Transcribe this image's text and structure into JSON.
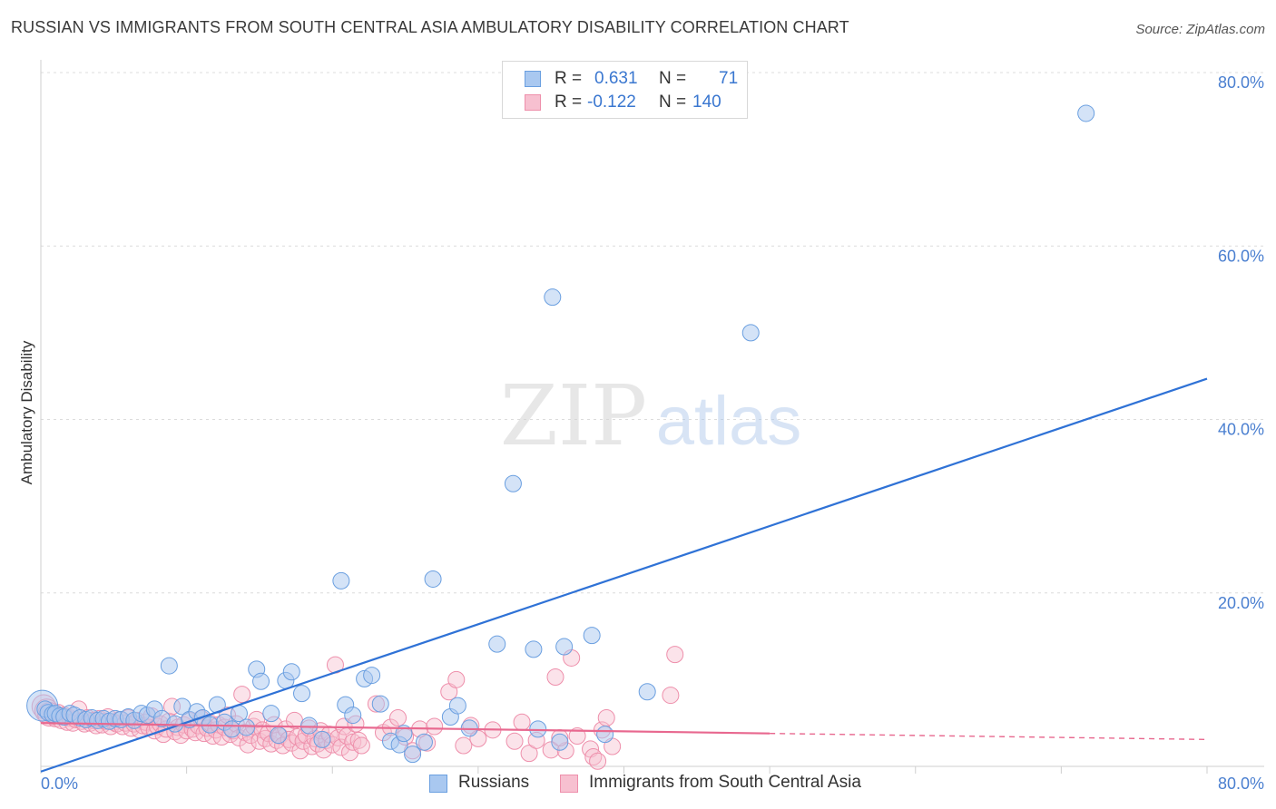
{
  "title": "RUSSIAN VS IMMIGRANTS FROM SOUTH CENTRAL ASIA AMBULATORY DISABILITY CORRELATION CHART",
  "source": "Source: ZipAtlas.com",
  "watermark": {
    "zip": "ZIP",
    "atlas": "atlas"
  },
  "colors": {
    "blue_fill": "#a9c8f0",
    "blue_stroke": "#6a9fe0",
    "blue_line": "#2f72d6",
    "pink_fill": "#f7c0d0",
    "pink_stroke": "#ee8fab",
    "pink_line": "#e8688f",
    "tick": "#4a7fd0",
    "grid": "#dcdcdc"
  },
  "legend": {
    "russians": {
      "r_label": "R =",
      "r_value": "0.631",
      "n_label": "N =",
      "n_value": "71"
    },
    "immigrants": {
      "r_label": "R =",
      "r_value": "-0.122",
      "n_label": "N =",
      "n_value": "140"
    }
  },
  "bottom_legend": {
    "russians": "Russians",
    "immigrants": "Immigrants from South Central Asia"
  },
  "chart_data": {
    "type": "scatter",
    "title": "RUSSIAN VS IMMIGRANTS FROM SOUTH CENTRAL ASIA AMBULATORY DISABILITY CORRELATION CHART",
    "xlabel": "",
    "ylabel": "Ambulatory Disability",
    "xlim": [
      0,
      80
    ],
    "ylim": [
      0,
      80
    ],
    "x_tick_labels": [
      {
        "value": 0,
        "label": "0.0%"
      },
      {
        "value": 80,
        "label": "80.0%"
      }
    ],
    "y_tick_labels": [
      {
        "value": 20,
        "label": "20.0%"
      },
      {
        "value": 40,
        "label": "40.0%"
      },
      {
        "value": 60,
        "label": "60.0%"
      },
      {
        "value": 80,
        "label": "80.0%"
      }
    ],
    "grid": true,
    "series": [
      {
        "name": "Russians",
        "color": "blue",
        "trend": {
          "x0": 0,
          "y0": -0.6,
          "x1": 80,
          "y1": 44.7
        },
        "points": [
          [
            0.1,
            7.0
          ],
          [
            0.3,
            6.6
          ],
          [
            0.5,
            6.2
          ],
          [
            0.8,
            6.0
          ],
          [
            1.0,
            6.1
          ],
          [
            1.3,
            5.8
          ],
          [
            1.6,
            5.7
          ],
          [
            2.0,
            6.1
          ],
          [
            2.3,
            5.9
          ],
          [
            2.7,
            5.6
          ],
          [
            3.1,
            5.4
          ],
          [
            3.5,
            5.6
          ],
          [
            3.9,
            5.3
          ],
          [
            4.3,
            5.5
          ],
          [
            4.7,
            5.2
          ],
          [
            5.1,
            5.5
          ],
          [
            5.5,
            5.4
          ],
          [
            6.0,
            5.7
          ],
          [
            6.4,
            5.3
          ],
          [
            6.9,
            6.1
          ],
          [
            7.3,
            5.9
          ],
          [
            7.8,
            6.6
          ],
          [
            8.3,
            5.5
          ],
          [
            8.8,
            11.6
          ],
          [
            9.2,
            4.9
          ],
          [
            9.7,
            6.9
          ],
          [
            10.2,
            5.4
          ],
          [
            10.7,
            6.3
          ],
          [
            11.1,
            5.6
          ],
          [
            11.6,
            4.8
          ],
          [
            12.1,
            7.1
          ],
          [
            12.6,
            5.1
          ],
          [
            13.1,
            4.3
          ],
          [
            13.6,
            6.1
          ],
          [
            14.1,
            4.5
          ],
          [
            14.8,
            11.2
          ],
          [
            15.1,
            9.8
          ],
          [
            15.8,
            6.1
          ],
          [
            16.3,
            3.6
          ],
          [
            16.8,
            9.9
          ],
          [
            17.2,
            10.9
          ],
          [
            17.9,
            8.4
          ],
          [
            18.4,
            4.7
          ],
          [
            19.3,
            3.1
          ],
          [
            20.6,
            21.4
          ],
          [
            20.9,
            7.1
          ],
          [
            21.4,
            5.9
          ],
          [
            22.2,
            10.1
          ],
          [
            22.7,
            10.5
          ],
          [
            23.3,
            7.2
          ],
          [
            24.0,
            2.9
          ],
          [
            24.6,
            2.5
          ],
          [
            24.9,
            3.8
          ],
          [
            25.5,
            1.4
          ],
          [
            26.3,
            2.8
          ],
          [
            26.9,
            21.6
          ],
          [
            28.1,
            5.7
          ],
          [
            28.6,
            7.0
          ],
          [
            29.4,
            4.4
          ],
          [
            31.3,
            14.1
          ],
          [
            32.4,
            32.6
          ],
          [
            33.8,
            13.5
          ],
          [
            35.1,
            54.1
          ],
          [
            35.9,
            13.8
          ],
          [
            37.8,
            15.1
          ],
          [
            38.7,
            3.7
          ],
          [
            41.6,
            8.6
          ],
          [
            48.7,
            50.0
          ],
          [
            35.6,
            2.8
          ],
          [
            34.1,
            4.3
          ],
          [
            71.7,
            75.3
          ]
        ]
      },
      {
        "name": "Immigrants from South Central Asia",
        "color": "pink",
        "trend": {
          "x0": 0,
          "y0": 5.0,
          "x1": 50,
          "y1": 3.8,
          "dash_x1": 80,
          "dash_y1": 3.1
        },
        "points": [
          [
            0.2,
            6.9
          ],
          [
            0.4,
            6.4
          ],
          [
            0.6,
            6.0
          ],
          [
            0.8,
            5.8
          ],
          [
            1.0,
            5.5
          ],
          [
            1.2,
            6.2
          ],
          [
            1.4,
            5.3
          ],
          [
            1.6,
            5.9
          ],
          [
            1.8,
            5.1
          ],
          [
            2.0,
            5.6
          ],
          [
            2.2,
            5.0
          ],
          [
            2.4,
            5.4
          ],
          [
            2.6,
            6.6
          ],
          [
            2.8,
            5.2
          ],
          [
            3.0,
            4.9
          ],
          [
            3.2,
            5.6
          ],
          [
            3.4,
            5.0
          ],
          [
            3.6,
            5.3
          ],
          [
            3.8,
            4.7
          ],
          [
            4.0,
            5.5
          ],
          [
            4.2,
            4.8
          ],
          [
            4.4,
            5.2
          ],
          [
            4.6,
            5.7
          ],
          [
            4.8,
            4.6
          ],
          [
            5.0,
            5.1
          ],
          [
            5.2,
            4.9
          ],
          [
            5.4,
            5.4
          ],
          [
            5.6,
            4.6
          ],
          [
            5.8,
            5.0
          ],
          [
            6.0,
            5.6
          ],
          [
            6.2,
            4.4
          ],
          [
            6.4,
            4.9
          ],
          [
            6.6,
            5.3
          ],
          [
            6.8,
            4.2
          ],
          [
            7.0,
            4.7
          ],
          [
            7.2,
            5.1
          ],
          [
            7.4,
            4.5
          ],
          [
            7.6,
            5.8
          ],
          [
            7.8,
            4.1
          ],
          [
            8.0,
            4.6
          ],
          [
            8.2,
            4.9
          ],
          [
            8.4,
            3.7
          ],
          [
            8.6,
            4.3
          ],
          [
            8.8,
            5.2
          ],
          [
            9.0,
            6.9
          ],
          [
            9.2,
            4.0
          ],
          [
            9.4,
            4.5
          ],
          [
            9.6,
            3.6
          ],
          [
            9.8,
            4.8
          ],
          [
            10.0,
            4.1
          ],
          [
            10.2,
            5.3
          ],
          [
            10.4,
            4.3
          ],
          [
            10.6,
            3.9
          ],
          [
            10.8,
            4.7
          ],
          [
            11.0,
            5.5
          ],
          [
            11.2,
            3.8
          ],
          [
            11.4,
            4.4
          ],
          [
            11.6,
            5.0
          ],
          [
            11.8,
            3.5
          ],
          [
            12.0,
            4.2
          ],
          [
            12.2,
            4.8
          ],
          [
            12.4,
            3.4
          ],
          [
            12.6,
            4.5
          ],
          [
            12.8,
            5.9
          ],
          [
            13.0,
            3.7
          ],
          [
            13.2,
            4.1
          ],
          [
            13.4,
            4.9
          ],
          [
            13.6,
            3.3
          ],
          [
            13.8,
            8.3
          ],
          [
            14.0,
            3.9
          ],
          [
            14.2,
            2.5
          ],
          [
            14.4,
            3.6
          ],
          [
            14.6,
            4.6
          ],
          [
            14.8,
            5.4
          ],
          [
            15.0,
            2.9
          ],
          [
            15.2,
            4.2
          ],
          [
            15.4,
            3.2
          ],
          [
            15.6,
            3.8
          ],
          [
            15.8,
            2.6
          ],
          [
            16.0,
            4.8
          ],
          [
            16.2,
            3.0
          ],
          [
            16.4,
            3.5
          ],
          [
            16.6,
            2.4
          ],
          [
            16.8,
            4.3
          ],
          [
            17.0,
            3.1
          ],
          [
            17.2,
            2.7
          ],
          [
            17.4,
            5.3
          ],
          [
            17.6,
            3.4
          ],
          [
            17.8,
            1.8
          ],
          [
            18.0,
            2.9
          ],
          [
            18.2,
            3.6
          ],
          [
            18.4,
            4.4
          ],
          [
            18.6,
            2.3
          ],
          [
            18.8,
            3.2
          ],
          [
            19.0,
            2.6
          ],
          [
            19.2,
            4.1
          ],
          [
            19.4,
            1.9
          ],
          [
            19.6,
            3.0
          ],
          [
            19.8,
            3.7
          ],
          [
            20.0,
            2.5
          ],
          [
            20.2,
            11.7
          ],
          [
            20.4,
            3.3
          ],
          [
            20.6,
            2.2
          ],
          [
            20.8,
            4.6
          ],
          [
            21.0,
            3.5
          ],
          [
            21.2,
            1.6
          ],
          [
            21.4,
            2.8
          ],
          [
            21.6,
            4.9
          ],
          [
            21.8,
            3.0
          ],
          [
            22.0,
            2.4
          ],
          [
            23.0,
            7.2
          ],
          [
            23.5,
            3.9
          ],
          [
            24.0,
            4.5
          ],
          [
            24.5,
            5.6
          ],
          [
            25.0,
            3.4
          ],
          [
            25.5,
            1.8
          ],
          [
            26.0,
            4.3
          ],
          [
            26.5,
            2.7
          ],
          [
            27.0,
            4.6
          ],
          [
            28.0,
            8.6
          ],
          [
            28.5,
            10.0
          ],
          [
            29.0,
            2.4
          ],
          [
            29.5,
            4.7
          ],
          [
            30.0,
            3.2
          ],
          [
            31.0,
            4.2
          ],
          [
            32.5,
            2.9
          ],
          [
            33.0,
            5.1
          ],
          [
            33.5,
            1.5
          ],
          [
            34.0,
            3.0
          ],
          [
            35.0,
            1.9
          ],
          [
            35.3,
            10.3
          ],
          [
            36.0,
            1.8
          ],
          [
            36.4,
            12.5
          ],
          [
            36.8,
            3.5
          ],
          [
            37.7,
            2.0
          ],
          [
            38.5,
            4.2
          ],
          [
            38.8,
            5.6
          ],
          [
            39.2,
            2.3
          ],
          [
            43.2,
            8.2
          ],
          [
            43.5,
            12.9
          ],
          [
            37.9,
            1.1
          ],
          [
            35.6,
            3.3
          ],
          [
            38.2,
            0.6
          ]
        ]
      }
    ]
  }
}
